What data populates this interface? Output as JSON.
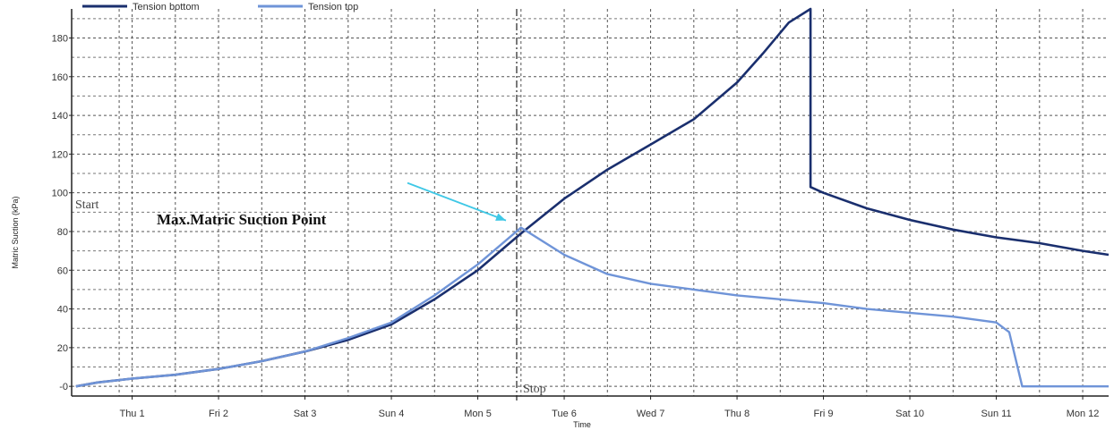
{
  "chart_data": {
    "type": "line",
    "xlabel": "Time",
    "ylabel": "Matric Suction (kPa)",
    "x_unit": "day",
    "xlim": [
      0.3,
      12.3
    ],
    "ylim": [
      -5,
      195
    ],
    "y_ticks": [
      0,
      20,
      40,
      60,
      80,
      100,
      120,
      140,
      160,
      180
    ],
    "y_tick_labels": [
      "-0",
      "20",
      "40",
      "60",
      "80",
      "100",
      "120",
      "140",
      "160",
      "180"
    ],
    "x_ticks": [
      1,
      2,
      3,
      4,
      5,
      6,
      7,
      8,
      9,
      10,
      11,
      12
    ],
    "x_tick_labels": [
      "Thu 1",
      "Fri 2",
      "Sat 3",
      "Sun 4",
      "Mon 5",
      "Tue 6",
      "Wed 7",
      "Thu 8",
      "Fri 9",
      "Sat 10",
      "Sun 11",
      "Mon 12"
    ],
    "grid": true,
    "legend_position": "top-left",
    "series": [
      {
        "name": "Tension bottom",
        "color": "#1a2f6e",
        "x": [
          0.35,
          0.6,
          1.0,
          1.5,
          2.0,
          2.5,
          3.0,
          3.5,
          4.0,
          4.5,
          5.0,
          5.5,
          6.0,
          6.5,
          7.0,
          7.5,
          8.0,
          8.3,
          8.6,
          8.85,
          8.85,
          8.85,
          9.0,
          9.5,
          10.0,
          10.5,
          11.0,
          11.5,
          12.0,
          12.3
        ],
        "y": [
          0,
          2,
          4,
          6,
          9,
          13,
          18,
          24,
          32,
          45,
          60,
          79,
          97,
          112,
          125,
          138,
          157,
          172,
          188,
          195,
          195,
          103,
          100,
          92,
          86,
          81,
          77,
          74,
          70,
          68
        ]
      },
      {
        "name": "Tension top",
        "color": "#6f94d8",
        "x": [
          0.35,
          0.6,
          1.0,
          1.5,
          2.0,
          2.5,
          3.0,
          3.5,
          4.0,
          4.5,
          5.0,
          5.5,
          6.0,
          6.5,
          7.0,
          7.5,
          8.0,
          8.5,
          9.0,
          9.5,
          10.0,
          10.5,
          11.0,
          11.15,
          11.3,
          11.5,
          12.0,
          12.3
        ],
        "y": [
          0,
          2,
          4,
          6,
          9,
          13,
          18,
          25,
          33,
          47,
          63,
          82,
          68,
          58,
          53,
          50,
          47,
          45,
          43,
          40,
          38,
          36,
          33,
          28,
          0,
          0,
          0,
          0
        ]
      }
    ],
    "annotations": {
      "start": "Start",
      "stop": "Stop",
      "max_point_label": "Max.Matric Suction Point",
      "stop_x": 5.45,
      "max_point": [
        5.45,
        82
      ],
      "arrow_color": "#3fc8e6"
    }
  }
}
